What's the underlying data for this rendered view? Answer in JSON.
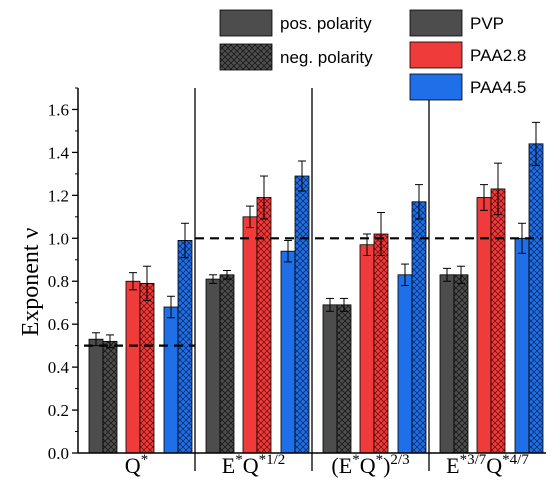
{
  "chart_data": {
    "type": "bar",
    "ylabel": "Exponent ν",
    "ylim": [
      0,
      1.7
    ],
    "yticks": [
      "0.0",
      "0.2",
      "0.4",
      "0.6",
      "0.8",
      "1.0",
      "1.2",
      "1.4",
      "1.6"
    ],
    "yticks_values": [
      0,
      0.2,
      0.4,
      0.6,
      0.8,
      1.0,
      1.2,
      1.4,
      1.6
    ],
    "categories": [
      {
        "base": "Q",
        "sup": "*"
      },
      {
        "base": "E",
        "sup": "*",
        "base2": "Q",
        "sup2": "*1/2"
      },
      {
        "base": "(E",
        "sup": "*",
        "base2": "Q",
        "sup2": "*",
        "base3": ")",
        "sup3": "2/3"
      },
      {
        "base": "E",
        "sup": "*3/7",
        "base2": "Q",
        "sup2": "*4/7"
      }
    ],
    "series": [
      {
        "name": "PVP",
        "color": "#4d4d4d",
        "polarity": "pos.",
        "values": [
          0.53,
          0.81,
          0.69,
          0.83
        ],
        "errors": [
          0.03,
          0.02,
          0.03,
          0.03
        ]
      },
      {
        "name": "PVP",
        "color": "#4d4d4d",
        "polarity": "neg.",
        "values": [
          0.52,
          0.83,
          0.69,
          0.83
        ],
        "errors": [
          0.03,
          0.02,
          0.03,
          0.04
        ]
      },
      {
        "name": "PAA2.8",
        "color": "#f03b3b",
        "polarity": "pos.",
        "values": [
          0.8,
          1.1,
          0.97,
          1.19
        ],
        "errors": [
          0.04,
          0.05,
          0.05,
          0.06
        ]
      },
      {
        "name": "PAA2.8",
        "color": "#f03b3b",
        "polarity": "neg.",
        "values": [
          0.79,
          1.19,
          1.02,
          1.23
        ],
        "errors": [
          0.08,
          0.1,
          0.1,
          0.12
        ]
      },
      {
        "name": "PAA4.5",
        "color": "#1e6fe8",
        "polarity": "pos.",
        "values": [
          0.68,
          0.94,
          0.83,
          1.0
        ],
        "errors": [
          0.05,
          0.05,
          0.05,
          0.07
        ]
      },
      {
        "name": "PAA4.5",
        "color": "#1e6fe8",
        "polarity": "neg.",
        "values": [
          0.99,
          1.29,
          1.17,
          1.44
        ],
        "errors": [
          0.08,
          0.07,
          0.08,
          0.1
        ]
      }
    ],
    "reference_lines": [
      0.5,
      1.0
    ],
    "legend": {
      "placement": "top",
      "polarity_items": [
        {
          "label": "pos. polarity",
          "pattern": "solid"
        },
        {
          "label": "neg. polarity",
          "pattern": "crosshatch"
        }
      ],
      "polymer_items": [
        {
          "label": "PVP",
          "color": "#4d4d4d"
        },
        {
          "label": "PAA2.8",
          "color": "#f03b3b"
        },
        {
          "label": "PAA4.5",
          "color": "#1e6fe8"
        }
      ]
    }
  }
}
